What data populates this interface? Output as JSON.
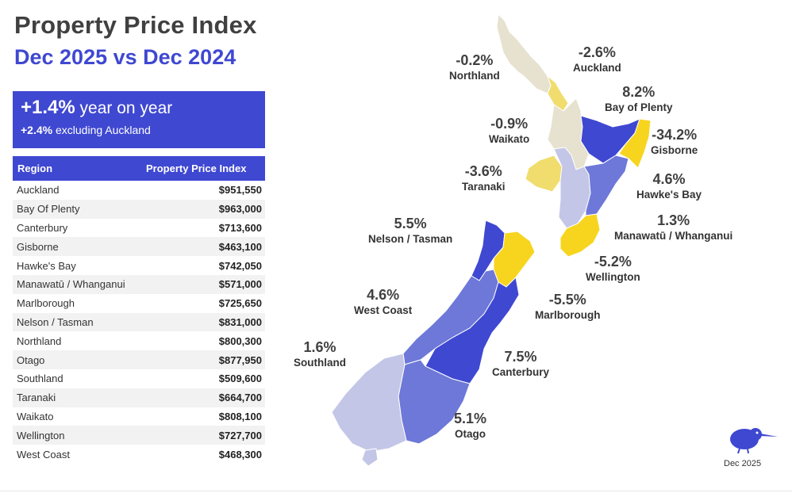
{
  "header": {
    "title": "Property Price Index",
    "subtitle": "Dec 2025 vs Dec 2024"
  },
  "kpi": {
    "main_value": "+1.4%",
    "main_text": " year on year",
    "sub_value": "+2.4%",
    "sub_text": " excluding Auckland"
  },
  "table": {
    "columns": [
      "Region",
      "Property Price Index"
    ],
    "rows": [
      {
        "region": "Auckland",
        "value": "$951,550"
      },
      {
        "region": "Bay Of Plenty",
        "value": "$963,000"
      },
      {
        "region": "Canterbury",
        "value": "$713,600"
      },
      {
        "region": "Gisborne",
        "value": "$463,100"
      },
      {
        "region": "Hawke's Bay",
        "value": "$742,050"
      },
      {
        "region": "Manawatū / Whanganui",
        "value": "$571,000"
      },
      {
        "region": "Marlborough",
        "value": "$725,650"
      },
      {
        "region": "Nelson / Tasman",
        "value": "$831,000"
      },
      {
        "region": "Northland",
        "value": "$800,300"
      },
      {
        "region": "Otago",
        "value": "$877,950"
      },
      {
        "region": "Southland",
        "value": "$509,600"
      },
      {
        "region": "Taranaki",
        "value": "$664,700"
      },
      {
        "region": "Waikato",
        "value": "$808,100"
      },
      {
        "region": "Wellington",
        "value": "$727,700"
      },
      {
        "region": "West Coast",
        "value": "$468,300"
      }
    ]
  },
  "chart_data": {
    "type": "choropleth-map",
    "title": "Property Price Index",
    "subtitle": "Dec 2025 vs Dec 2024",
    "regions": [
      {
        "name": "Northland",
        "change_pct": -0.2,
        "label": "-0.2%"
      },
      {
        "name": "Auckland",
        "change_pct": -2.6,
        "label": "-2.6%"
      },
      {
        "name": "Bay of Plenty",
        "change_pct": 8.2,
        "label": "8.2%"
      },
      {
        "name": "Waikato",
        "change_pct": -0.9,
        "label": "-0.9%"
      },
      {
        "name": "Gisborne",
        "change_pct": -34.2,
        "label": "-34.2%"
      },
      {
        "name": "Taranaki",
        "change_pct": -3.6,
        "label": "-3.6%"
      },
      {
        "name": "Hawke's Bay",
        "change_pct": 4.6,
        "label": "4.6%"
      },
      {
        "name": "Nelson / Tasman",
        "change_pct": 5.5,
        "label": "5.5%"
      },
      {
        "name": "Manawatū / Whanganui",
        "change_pct": 1.3,
        "label": "1.3%"
      },
      {
        "name": "Wellington",
        "change_pct": -5.2,
        "label": "-5.2%"
      },
      {
        "name": "West Coast",
        "change_pct": 4.6,
        "label": "4.6%"
      },
      {
        "name": "Marlborough",
        "change_pct": -5.5,
        "label": "-5.5%"
      },
      {
        "name": "Southland",
        "change_pct": 1.6,
        "label": "1.6%"
      },
      {
        "name": "Canterbury",
        "change_pct": 7.5,
        "label": "7.5%"
      },
      {
        "name": "Otago",
        "change_pct": 5.1,
        "label": "5.1%"
      }
    ]
  },
  "colors": {
    "accent": "#3f48d1",
    "strong_positive": "#3f48d1",
    "positive": "#6d78d8",
    "low_positive": "#c3c6e6",
    "slight_negative": "#e6e2cf",
    "negative": "#f0dd6e",
    "strong_negative": "#f7d51f"
  },
  "footer": {
    "date": "Dec 2025",
    "logo_icon": "kiwi-bird-icon"
  }
}
